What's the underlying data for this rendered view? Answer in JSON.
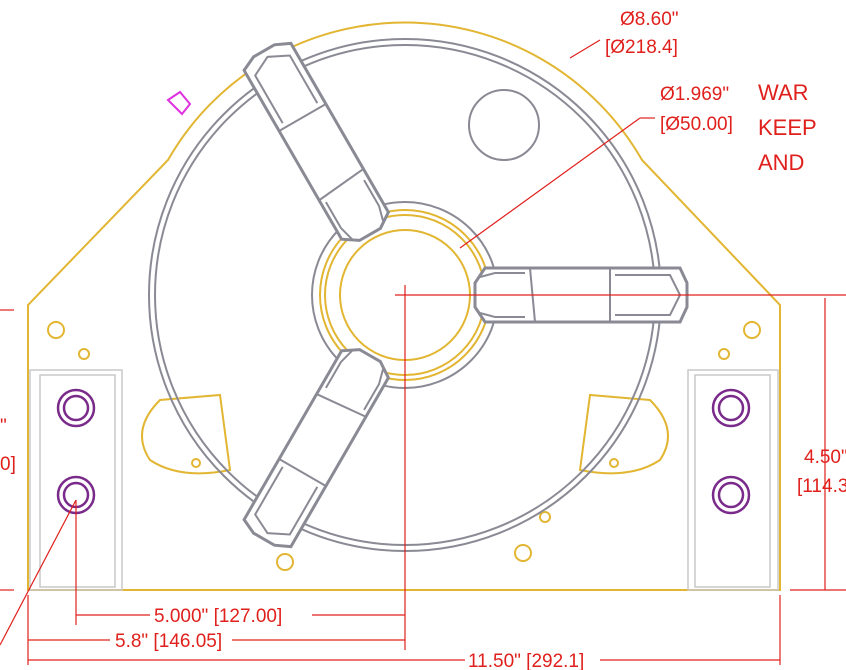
{
  "callouts": {
    "outer_diameter": {
      "inch": "Ø8.60\"",
      "mm": "[Ø218.4]"
    },
    "bore_diameter": {
      "inch": "Ø1.969\"",
      "mm": "[Ø50.00]"
    }
  },
  "warning": [
    "WAR",
    "KEEP",
    "AND"
  ],
  "dimensions": {
    "height": {
      "inch": "4.50\"",
      "mm": "[114.3"
    },
    "left_cut": {
      "inch": "\"",
      "mm": "0]"
    },
    "bolt_offset": "5.000\" [127.00]",
    "center_offset": "5.8\" [146.05]",
    "overall_width": "11.50\" [292.1]"
  }
}
